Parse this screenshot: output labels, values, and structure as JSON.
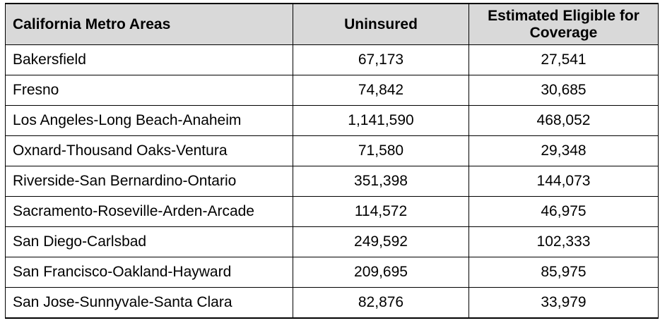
{
  "table": {
    "headers": {
      "area": "California Metro Areas",
      "uninsured": "Uninsured",
      "eligible": "Estimated Eligible for Coverage"
    },
    "rows": [
      {
        "area": "Bakersfield",
        "uninsured": "67,173",
        "eligible": "27,541"
      },
      {
        "area": "Fresno",
        "uninsured": "74,842",
        "eligible": "30,685"
      },
      {
        "area": "Los Angeles-Long Beach-Anaheim",
        "uninsured": "1,141,590",
        "eligible": "468,052"
      },
      {
        "area": "Oxnard-Thousand Oaks-Ventura",
        "uninsured": "71,580",
        "eligible": "29,348"
      },
      {
        "area": "Riverside-San Bernardino-Ontario",
        "uninsured": "351,398",
        "eligible": "144,073"
      },
      {
        "area": "Sacramento-Roseville-Arden-Arcade",
        "uninsured": "114,572",
        "eligible": "46,975"
      },
      {
        "area": "San Diego-Carlsbad",
        "uninsured": "249,592",
        "eligible": "102,333"
      },
      {
        "area": "San Francisco-Oakland-Hayward",
        "uninsured": "209,695",
        "eligible": "85,975"
      },
      {
        "area": "San Jose-Sunnyvale-Santa Clara",
        "uninsured": "82,876",
        "eligible": "33,979"
      }
    ]
  },
  "colors": {
    "header_background": "#d9d9d9",
    "border": "#000000",
    "text": "#000000"
  }
}
